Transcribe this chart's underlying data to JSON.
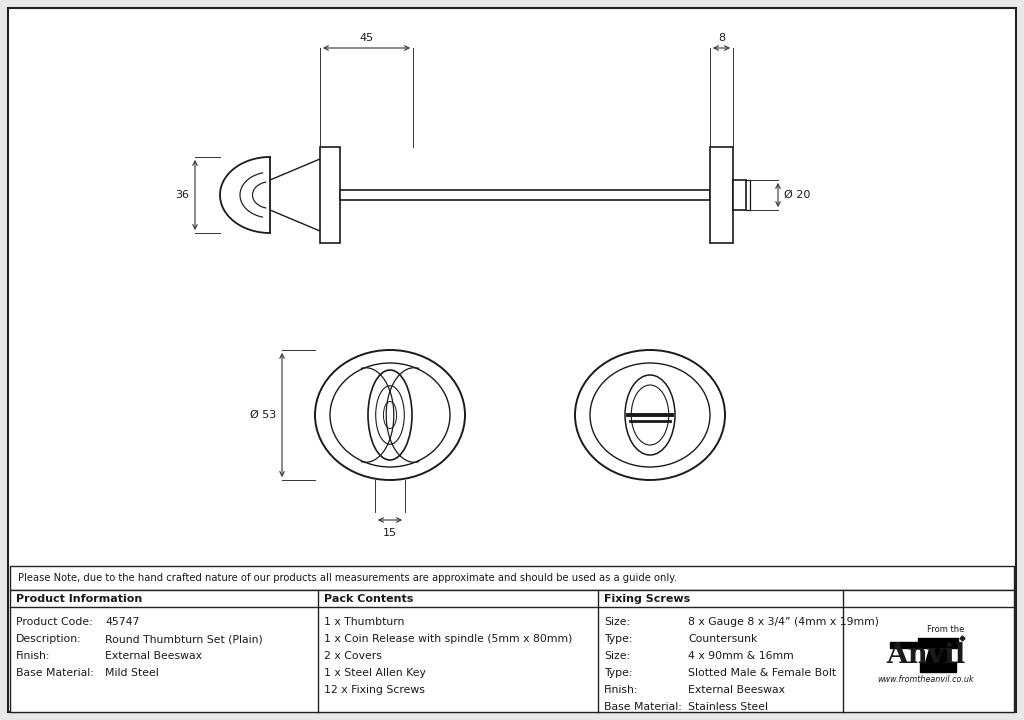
{
  "bg_color": "#e8e8e8",
  "line_color": "#1a1a1a",
  "dim_color": "#333333",
  "border_color": "#222222",
  "note_text": "Please Note, due to the hand crafted nature of our products all measurements are approximate and should be used as a guide only.",
  "product_info": {
    "header": "Product Information",
    "rows": [
      [
        "Product Code:",
        "45747"
      ],
      [
        "Description:",
        "Round Thumbturn Set (Plain)"
      ],
      [
        "Finish:",
        "External Beeswax"
      ],
      [
        "Base Material:",
        "Mild Steel"
      ]
    ]
  },
  "pack_contents": {
    "header": "Pack Contents",
    "items": [
      "1 x Thumbturn",
      "1 x Coin Release with spindle (5mm x 80mm)",
      "2 x Covers",
      "1 x Steel Allen Key",
      "12 x Fixing Screws"
    ]
  },
  "fixing_screws": {
    "header": "Fixing Screws",
    "rows": [
      [
        "Size:",
        "8 x Gauge 8 x 3/4” (4mm x 19mm)"
      ],
      [
        "Type:",
        "Countersunk"
      ],
      [
        "Size:",
        "4 x 90mm & 16mm"
      ],
      [
        "Type:",
        "Slotted Male & Female Bolt"
      ],
      [
        "Finish:",
        "External Beeswax"
      ],
      [
        "Base Material:",
        "Stainless Steel"
      ]
    ]
  }
}
